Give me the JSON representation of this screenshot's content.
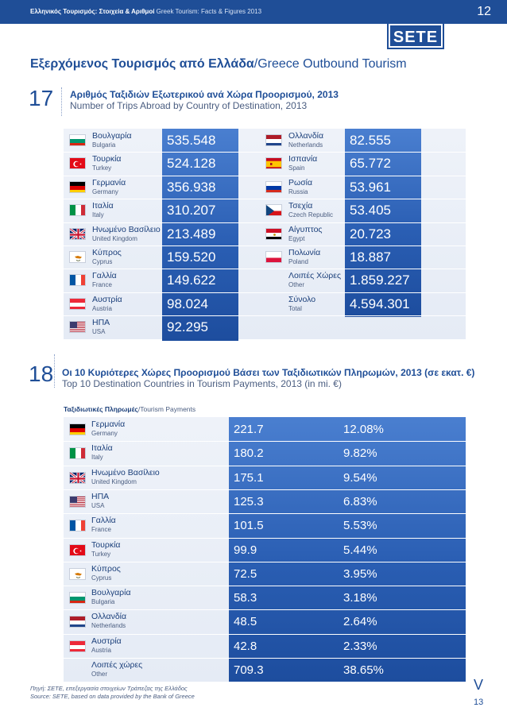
{
  "header": {
    "running_title_gr": "Ελληνικός Τουρισμός: Στοιχεία & Αριθμοί",
    "running_title_en": "Greek Tourism: Facts & Figures 2013",
    "page_top": "12",
    "logo": "SETE"
  },
  "section": {
    "title_gr": "Εξερχόμενος Τουρισμός από Ελλάδα",
    "title_en": "/Greece Outbound Tourism"
  },
  "block17": {
    "number": "17",
    "title_gr": "Αριθμός Ταξιδιών Εξωτερικού ανά Χώρα Προορισμού, 2013",
    "title_en": "Number of Trips Abroad by Country of Destination, 2013",
    "left": [
      {
        "gr": "Βουλγαρία",
        "en": "Bulgaria",
        "value": "535.548",
        "flag": "bulgaria"
      },
      {
        "gr": "Τουρκία",
        "en": "Turkey",
        "value": "524.128",
        "flag": "turkey"
      },
      {
        "gr": "Γερμανία",
        "en": "Germany",
        "value": "356.938",
        "flag": "germany"
      },
      {
        "gr": "Ιταλία",
        "en": "Italy",
        "value": "310.207",
        "flag": "italy"
      },
      {
        "gr": "Ηνωμένο Βασίλειο",
        "en": "United Kingdom",
        "value": "213.489",
        "flag": "uk"
      },
      {
        "gr": "Κύπρος",
        "en": "Cyprus",
        "value": "159.520",
        "flag": "cyprus"
      },
      {
        "gr": "Γαλλία",
        "en": "France",
        "value": "149.622",
        "flag": "france"
      },
      {
        "gr": "Αυστρία",
        "en": "Austria",
        "value": "98.024",
        "flag": "austria"
      },
      {
        "gr": "ΗΠΑ",
        "en": "USA",
        "value": "92.295",
        "flag": "usa"
      }
    ],
    "right": [
      {
        "gr": "Ολλανδία",
        "en": "Netherlands",
        "value": "82.555",
        "flag": "netherlands"
      },
      {
        "gr": "Ισπανία",
        "en": "Spain",
        "value": "65.772",
        "flag": "spain"
      },
      {
        "gr": "Ρωσία",
        "en": "Russia",
        "value": "53.961",
        "flag": "russia"
      },
      {
        "gr": "Τσεχία",
        "en": "Czech Republic",
        "value": "53.405",
        "flag": "czech"
      },
      {
        "gr": "Αίγυπτος",
        "en": "Egypt",
        "value": "20.723",
        "flag": "egypt"
      },
      {
        "gr": "Πολωνία",
        "en": "Poland",
        "value": "18.887",
        "flag": "poland"
      },
      {
        "gr": "Λοιπές Χώρες",
        "en": "Other",
        "value": "1.859.227",
        "flag": ""
      },
      {
        "gr": "Σύνολο",
        "en": "Total",
        "value": "4.594.301",
        "flag": ""
      }
    ]
  },
  "block18": {
    "number": "18",
    "title_gr": "Οι 10 Κυριότερες Χώρες Προορισμού Βάσει των Ταξιδιωτικών Πληρωμών, 2013 (σε εκατ. €)",
    "title_en": "Top 10 Destination Countries in Tourism Payments, 2013 (in mi. €)",
    "sub_gr": "Ταξιδιωτικές Πληρωμές",
    "sub_en": "/Tourism Payments",
    "rows": [
      {
        "gr": "Γερμανία",
        "en": "Germany",
        "value": "221.7",
        "share": "12.08%",
        "flag": "germany"
      },
      {
        "gr": "Ιταλία",
        "en": "Italy",
        "value": "180.2",
        "share": "9.82%",
        "flag": "italy"
      },
      {
        "gr": "Ηνωμένο Βασίλειο",
        "en": "United Kingdom",
        "value": "175.1",
        "share": "9.54%",
        "flag": "uk"
      },
      {
        "gr": "ΗΠΑ",
        "en": "USA",
        "value": "125.3",
        "share": "6.83%",
        "flag": "usa"
      },
      {
        "gr": "Γαλλία",
        "en": "France",
        "value": "101.5",
        "share": "5.53%",
        "flag": "france"
      },
      {
        "gr": "Τουρκία",
        "en": "Turkey",
        "value": "99.9",
        "share": "5.44%",
        "flag": "turkey"
      },
      {
        "gr": "Κύπρος",
        "en": "Cyprus",
        "value": "72.5",
        "share": "3.95%",
        "flag": "cyprus"
      },
      {
        "gr": "Βουλγαρία",
        "en": "Bulgaria",
        "value": "58.3",
        "share": "3.18%",
        "flag": "bulgaria"
      },
      {
        "gr": "Ολλανδία",
        "en": "Netherlands",
        "value": "48.5",
        "share": "2.64%",
        "flag": "netherlands"
      },
      {
        "gr": "Αυστρία",
        "en": "Austria",
        "value": "42.8",
        "share": "2.33%",
        "flag": "austria"
      },
      {
        "gr": "Λοιπές χώρες",
        "en": "Other",
        "value": "709.3",
        "share": "38.65%",
        "flag": ""
      }
    ]
  },
  "footer": {
    "source_gr": "Πηγή: ΣΕΤΕ, επεξεργασία στοιχείων Τράπεζας της Ελλάδος",
    "source_en": "Source: SETE, based on data provided by the Bank of Greece",
    "chevron": "V",
    "page_bottom": "13"
  }
}
